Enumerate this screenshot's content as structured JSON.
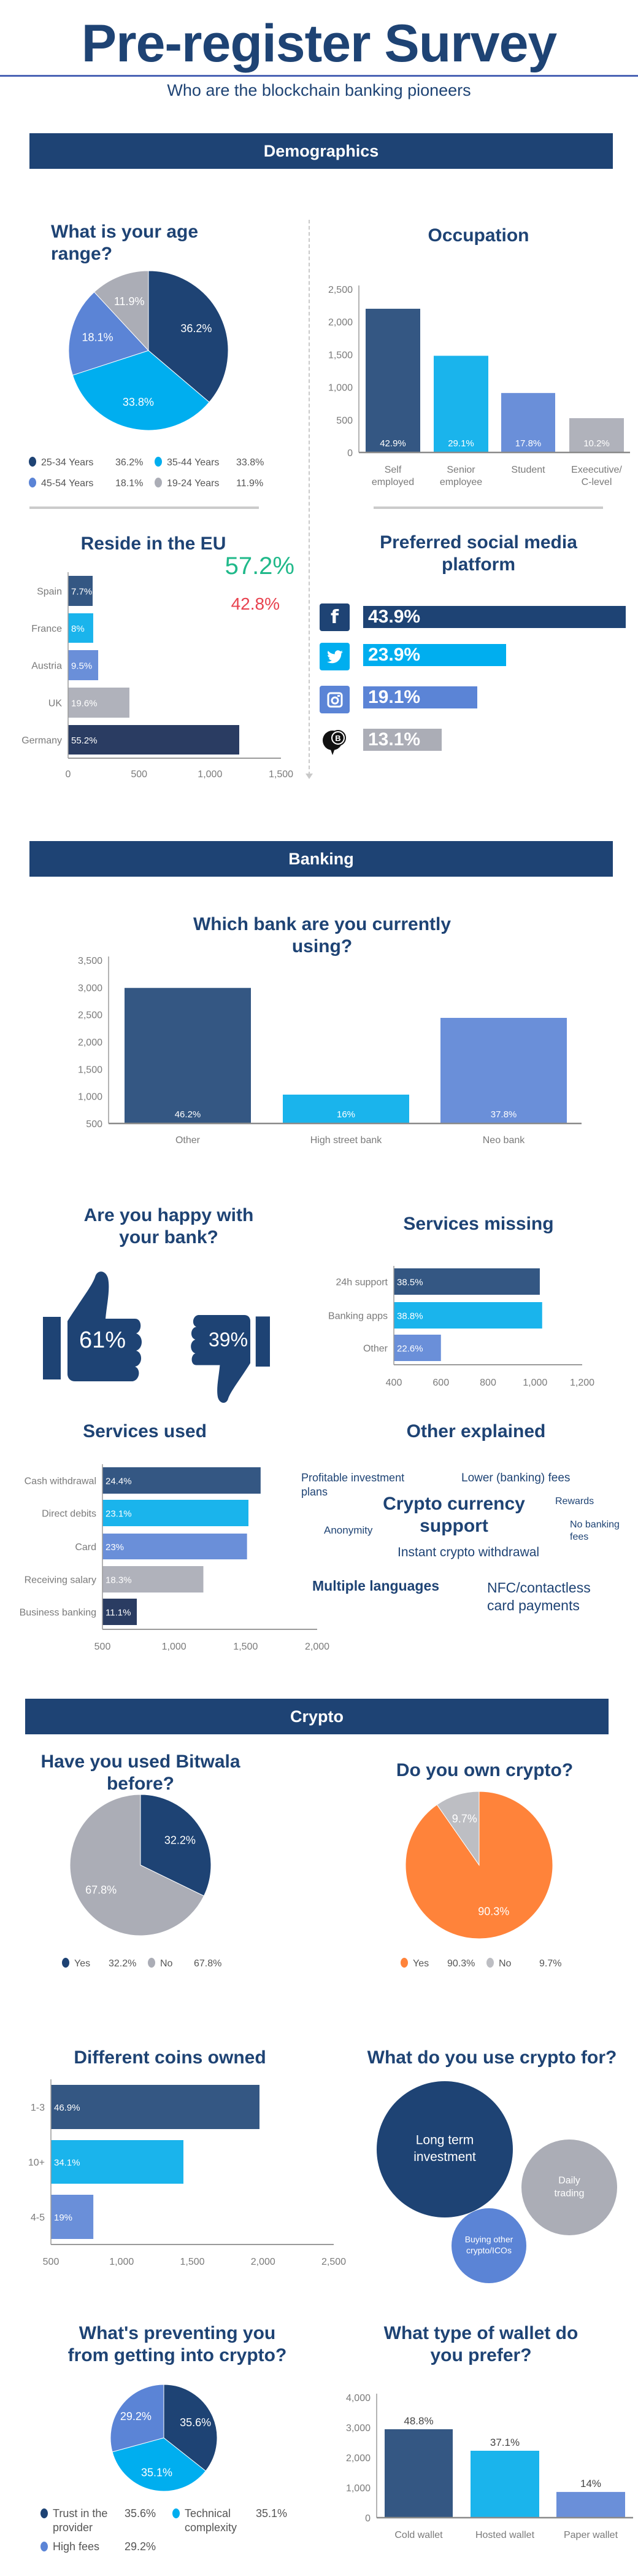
{
  "header": {
    "title": "Pre-register Survey",
    "subtitle": "Who are the blockchain banking pioneers"
  },
  "sections": {
    "demographics": "Demographics",
    "banking": "Banking",
    "crypto": "Crypto"
  },
  "colors": {
    "navy": "#1e4374",
    "bar_navy": "#345783",
    "cyan": "#1ab4ec",
    "blue": "#6a8fd9",
    "gray": "#b0b2bb",
    "dark": "#2a3c62",
    "orange": "#ff833a",
    "green": "#20b98a",
    "red": "#e8424f"
  },
  "chart_data": [
    {
      "type": "pie",
      "title": "What is your age range?",
      "categories": [
        "25-34 Years",
        "35-44 Years",
        "45-54 Years",
        "19-24 Years"
      ],
      "values": [
        36.2,
        33.8,
        18.1,
        11.9
      ],
      "labels": [
        "36.2%",
        "33.8%",
        "18.1%",
        "11.9%"
      ],
      "colors": [
        "#1e4374",
        "#00aeef",
        "#5b84d6",
        "#abadb6"
      ],
      "legend": "bottom"
    },
    {
      "type": "bar",
      "title": "Occupation",
      "categories": [
        "Self employed",
        "Senior employee",
        "Student",
        "Exeecutive/ C-level"
      ],
      "values": [
        2200,
        1480,
        910,
        525
      ],
      "labels": [
        "42.9%",
        "29.1%",
        "17.8%",
        "10.2%"
      ],
      "colors": [
        "#345783",
        "#1ab4ec",
        "#6a8fd9",
        "#b0b2bb"
      ],
      "ylim": [
        0,
        2500
      ],
      "yticks": [
        0,
        500,
        1000,
        1500,
        2000,
        2500
      ]
    },
    {
      "type": "bar",
      "orientation": "horizontal",
      "title": "Reside in the EU",
      "categories": [
        "Spain",
        "France",
        "Austria",
        "UK",
        "Germany"
      ],
      "values": [
        173,
        177,
        212,
        432,
        1206
      ],
      "labels": [
        "7.7%",
        "8%",
        "9.5%",
        "19.6%",
        "55.2%"
      ],
      "colors": [
        "#345783",
        "#1ab4ec",
        "#6a8fd9",
        "#b0b2bb",
        "#2a3c62"
      ],
      "xlim": [
        0,
        1500
      ],
      "xticks": [
        0,
        500,
        1000,
        1500
      ],
      "annotations": [
        "57.2%",
        "42.8%"
      ]
    },
    {
      "type": "bar",
      "orientation": "horizontal",
      "title": "Preferred social media platform",
      "icons": [
        "facebook-icon",
        "twitter-icon",
        "instagram-icon",
        "bitcoin-forum-icon"
      ],
      "values": [
        43.9,
        23.9,
        19.1,
        13.1
      ],
      "labels": [
        "43.9%",
        "23.9%",
        "19.1%",
        "13.1%"
      ],
      "colors": [
        "#1e4374",
        "#00aeef",
        "#5b84d6",
        "#abadb6"
      ]
    },
    {
      "type": "bar",
      "title": "Which bank are you currently using?",
      "categories": [
        "Other",
        "High street bank",
        "Neo bank"
      ],
      "values": [
        2990,
        1030,
        2440
      ],
      "labels": [
        "46.2%",
        "16%",
        "37.8%"
      ],
      "colors": [
        "#345783",
        "#1ab4ec",
        "#6a8fd9"
      ],
      "ylim": [
        500,
        3500
      ],
      "yticks": [
        500,
        1000,
        1500,
        2000,
        2500,
        3000,
        3500
      ]
    },
    {
      "type": "pictogram",
      "title": "Are you happy with your bank?",
      "categories": [
        "Yes",
        "No"
      ],
      "values": [
        61,
        39
      ],
      "labels": [
        "61%",
        "39%"
      ]
    },
    {
      "type": "bar",
      "orientation": "horizontal",
      "title": "Services missing",
      "categories": [
        "24h support",
        "Banking apps",
        "Other"
      ],
      "values": [
        1020,
        1030,
        600
      ],
      "labels": [
        "38.5%",
        "38.8%",
        "22.6%"
      ],
      "colors": [
        "#345783",
        "#1ab4ec",
        "#6a8fd9"
      ],
      "xlim": [
        400,
        1200
      ],
      "xticks": [
        400,
        600,
        800,
        1000,
        1200
      ]
    },
    {
      "type": "bar",
      "orientation": "horizontal",
      "title": "Services used",
      "categories": [
        "Cash withdrawal",
        "Direct debits",
        "Card",
        "Receiving salary",
        "Business banking"
      ],
      "values": [
        1605,
        1520,
        1510,
        1205,
        740
      ],
      "labels": [
        "24.4%",
        "23.1%",
        "23%",
        "18.3%",
        "11.1%"
      ],
      "colors": [
        "#345783",
        "#1ab4ec",
        "#6a8fd9",
        "#b0b2bb",
        "#2a3c62"
      ],
      "xlim": [
        500,
        2000
      ],
      "xticks": [
        500,
        1000,
        1500,
        2000
      ]
    },
    {
      "type": "wordcloud",
      "title": "Other explained",
      "words": [
        "Profitable investment plans",
        "Lower (banking) fees",
        "Crypto currency support",
        "Rewards",
        "Anonymity",
        "No banking fees",
        "Instant crypto withdrawal",
        "Multiple languages",
        "NFC/contactless card payments"
      ]
    },
    {
      "type": "pie",
      "title": "Have you used Bitwala before?",
      "categories": [
        "Yes",
        "No"
      ],
      "values": [
        32.2,
        67.8
      ],
      "labels": [
        "32.2%",
        "67.8%"
      ],
      "colors": [
        "#1e4374",
        "#abadb6"
      ],
      "legend": "bottom"
    },
    {
      "type": "pie",
      "title": "Do you own crypto?",
      "categories": [
        "Yes",
        "No"
      ],
      "values": [
        90.3,
        9.7
      ],
      "labels": [
        "90.3%",
        "9.7%"
      ],
      "colors": [
        "#ff833a",
        "#bdbec3"
      ],
      "legend": "bottom"
    },
    {
      "type": "bar",
      "orientation": "horizontal",
      "title": "Different coins owned",
      "categories": [
        "1-3",
        "10+",
        "4-5"
      ],
      "values": [
        1975,
        1437,
        800
      ],
      "labels": [
        "46.9%",
        "34.1%",
        "19%"
      ],
      "colors": [
        "#345783",
        "#1ab4ec",
        "#6a8fd9"
      ],
      "xlim": [
        500,
        2500
      ],
      "xticks": [
        500,
        1000,
        1500,
        2000,
        2500
      ]
    },
    {
      "type": "bubble",
      "title": "What do you use crypto for?",
      "categories": [
        "Long term investment",
        "Daily trading",
        "Buying other crypto/ICOs"
      ],
      "colors": [
        "#1e4374",
        "#abadb6",
        "#5b84d6"
      ]
    },
    {
      "type": "pie",
      "title": "What's preventing you from getting into crypto?",
      "categories": [
        "Trust in the provider",
        "Technical complexity",
        "High fees"
      ],
      "values": [
        35.6,
        35.1,
        29.2
      ],
      "labels": [
        "35.6%",
        "35.1%",
        "29.2%"
      ],
      "colors": [
        "#1e4374",
        "#00aeef",
        "#5b84d6"
      ],
      "legend": "bottom"
    },
    {
      "type": "bar",
      "title": "What type of wallet do you prefer?",
      "categories": [
        "Cold wallet",
        "Hosted wallet",
        "Paper wallet"
      ],
      "values": [
        2940,
        2225,
        855
      ],
      "labels": [
        "48.8%",
        "37.1%",
        "14%"
      ],
      "colors": [
        "#345783",
        "#1ab4ec",
        "#6a8fd9"
      ],
      "ylim": [
        0,
        4000
      ],
      "yticks": [
        0,
        1000,
        2000,
        3000,
        4000
      ]
    }
  ]
}
